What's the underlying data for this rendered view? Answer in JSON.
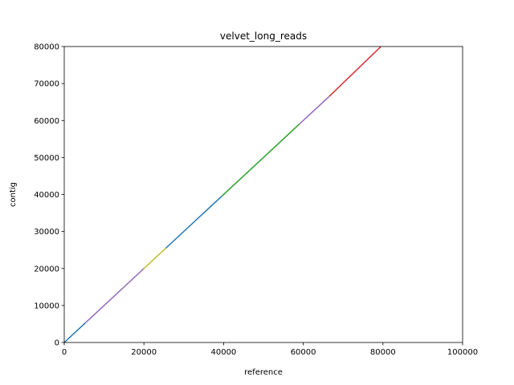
{
  "chart_data": {
    "type": "line",
    "title": "velvet_long_reads",
    "xlabel": "reference",
    "ylabel": "contig",
    "xlim": [
      0,
      100000
    ],
    "ylim": [
      0,
      80000
    ],
    "x_ticks": [
      0,
      20000,
      40000,
      60000,
      80000,
      100000
    ],
    "y_ticks": [
      0,
      10000,
      20000,
      30000,
      40000,
      50000,
      60000,
      70000,
      80000
    ],
    "x_tick_labels": [
      "0",
      "20000",
      "40000",
      "60000",
      "80000",
      "100000"
    ],
    "y_tick_labels": [
      "0",
      "10000",
      "20000",
      "30000",
      "40000",
      "50000",
      "60000",
      "70000",
      "80000"
    ],
    "grid": false,
    "segments": [
      {
        "color": "#1f77b4",
        "x": [
          0,
          5300
        ],
        "y": [
          0,
          5300
        ]
      },
      {
        "color": "#9467bd",
        "x": [
          5300,
          20000
        ],
        "y": [
          5300,
          20000
        ]
      },
      {
        "color": "#bcbd22",
        "x": [
          20000,
          25500
        ],
        "y": [
          20000,
          25500
        ]
      },
      {
        "color": "#1f77b4",
        "x": [
          25500,
          39500
        ],
        "y": [
          25500,
          39500
        ]
      },
      {
        "color": "#2ca02c",
        "x": [
          39500,
          46500
        ],
        "y": [
          39500,
          46500
        ]
      },
      {
        "color": "#2ca02c",
        "x": [
          46500,
          59000
        ],
        "y": [
          46500,
          59000
        ]
      },
      {
        "color": "#9467bd",
        "x": [
          59000,
          66500
        ],
        "y": [
          59000,
          66500
        ]
      },
      {
        "color": "#d62728",
        "x": [
          66500,
          79500
        ],
        "y": [
          66500,
          80000
        ]
      }
    ]
  }
}
